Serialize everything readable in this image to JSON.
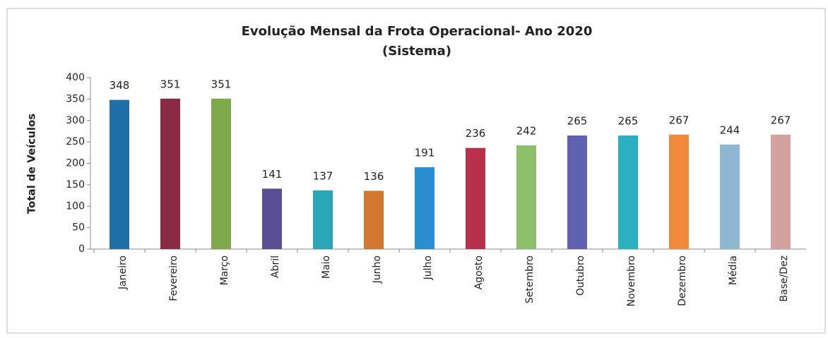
{
  "chart_data": {
    "type": "bar",
    "title": "Evolução Mensal da Frota Operacional- Ano 2020",
    "subtitle": "(Sistema)",
    "y_label": "Total de Veículos",
    "categories": [
      "Janeiro",
      "Fevereiro",
      "Março",
      "Abril",
      "Maio",
      "Junho",
      "Julho",
      "Agosto",
      "Setembro",
      "Outubro",
      "Novembro",
      "Dezembro",
      "Média",
      "Base/Dez"
    ],
    "values": [
      348,
      351,
      351,
      141,
      137,
      136,
      191,
      236,
      242,
      265,
      265,
      267,
      244,
      267
    ],
    "colors": [
      "#1f6fa8",
      "#8b2a44",
      "#7fa84a",
      "#5a4f94",
      "#2aa6b8",
      "#d2782e",
      "#2a8fd0",
      "#b8304a",
      "#8cc06a",
      "#5f62b0",
      "#2ab0c0",
      "#f08a3a",
      "#8fb8d0",
      "#d4a0a0"
    ],
    "ylim": [
      0,
      400
    ],
    "yticks": [
      0,
      50,
      100,
      150,
      200,
      250,
      300,
      350,
      400
    ],
    "grid": false
  }
}
